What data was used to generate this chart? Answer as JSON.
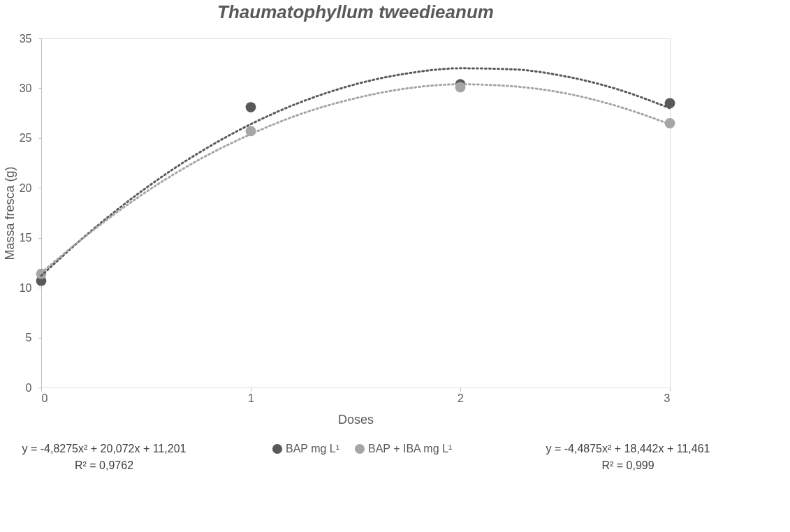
{
  "chart_data": {
    "type": "scatter",
    "title": "Thaumatophyllum tweedieanum",
    "xlabel": "Doses",
    "ylabel": "Massa fresca (g)",
    "xlim": [
      0,
      3
    ],
    "xticks": [
      0,
      1,
      2,
      3
    ],
    "ylim": [
      0,
      35
    ],
    "yticks": [
      0,
      5,
      10,
      15,
      20,
      25,
      30,
      35
    ],
    "grid": false,
    "legend": "bottom",
    "marker": "circle",
    "series": [
      {
        "name": "BAP mg L¹",
        "color": "#595959",
        "x": [
          0,
          1,
          2,
          3
        ],
        "values": [
          10.7,
          28.1,
          30.4,
          28.5
        ]
      },
      {
        "name": "BAP + IBA mg L¹",
        "color": "#a6a6a6",
        "x": [
          0,
          1,
          2,
          3
        ],
        "values": [
          11.4,
          25.7,
          30.1,
          26.5
        ]
      },
      {
        "type": "line",
        "marker": "none",
        "line_style": "dotted",
        "color": "#595959",
        "x": [
          0,
          0.25,
          0.5,
          0.75,
          1,
          1.25,
          1.5,
          1.75,
          2,
          2.25,
          2.5,
          2.75,
          3
        ],
        "values": [
          11.2,
          15.9,
          20.0,
          23.5,
          26.4,
          28.7,
          30.4,
          31.5,
          32.0,
          31.9,
          31.2,
          29.9,
          28.0
        ]
      },
      {
        "type": "line",
        "marker": "none",
        "line_style": "dotted",
        "color": "#a6a6a6",
        "x": [
          0,
          0.25,
          0.5,
          0.75,
          1,
          1.25,
          1.5,
          1.75,
          2,
          2.25,
          2.5,
          2.75,
          3
        ],
        "values": [
          11.5,
          15.8,
          19.6,
          22.8,
          25.4,
          27.5,
          29.0,
          30.0,
          30.4,
          30.2,
          29.5,
          28.2,
          26.4
        ]
      }
    ],
    "annotations": [
      "y = -4,8275x² + 20,072x + 11,201",
      "R² = 0,9762",
      "y = -4,4875x² + 18,442x + 11,461",
      "R² = 0,999"
    ]
  }
}
